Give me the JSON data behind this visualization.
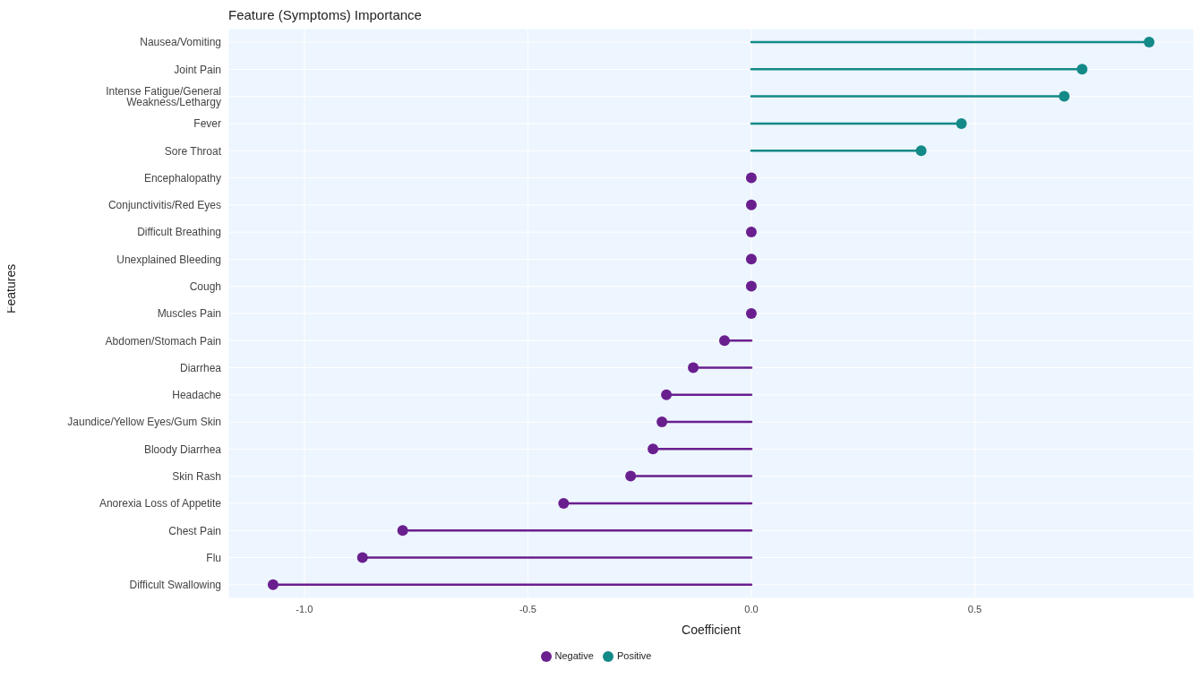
{
  "chart_data": {
    "type": "lollipop",
    "title": "Feature (Symptoms) Importance",
    "xlabel": "Coefficient",
    "ylabel": "Features",
    "orientation": "horizontal",
    "categories": [
      "Nausea/Vomiting",
      "Joint Pain",
      "Intense Fatigue/General Weakness/Lethargy",
      "Fever",
      "Sore Throat",
      "Encephalopathy",
      "Conjunctivitis/Red Eyes",
      "Difficult Breathing",
      "Unexplained Bleeding",
      "Cough",
      "Muscles Pain",
      "Abdomen/Stomach Pain",
      "Diarrhea",
      "Headache",
      "Jaundice/Yellow Eyes/Gum Skin",
      "Bloody Diarrhea",
      "Skin Rash",
      "Anorexia Loss of Appetite",
      "Chest Pain",
      "Flu",
      "Difficult Swallowing"
    ],
    "series": [
      {
        "name": "Negative",
        "color": "#6a1f8f",
        "values": [
          null,
          null,
          null,
          null,
          null,
          0,
          0,
          0,
          0,
          0,
          0,
          -0.06,
          -0.13,
          -0.19,
          -0.2,
          -0.22,
          -0.27,
          -0.42,
          -0.78,
          -0.87,
          -1.07
        ]
      },
      {
        "name": "Positive",
        "color": "#138a87",
        "values": [
          0.89,
          0.74,
          0.7,
          0.47,
          0.38,
          null,
          null,
          null,
          null,
          null,
          null,
          null,
          null,
          null,
          null,
          null,
          null,
          null,
          null,
          null,
          null
        ]
      }
    ],
    "xlim": [
      -1.17,
      0.99
    ],
    "xticks": [
      {
        "value": -1,
        "label": "-1.0"
      },
      {
        "value": -0.5,
        "label": "-0.5"
      },
      {
        "value": 0,
        "label": "0.0"
      },
      {
        "value": 0.5,
        "label": "0.5"
      }
    ],
    "grid": true,
    "legend": "bottom",
    "marker": "circle",
    "line_style": "solid"
  }
}
